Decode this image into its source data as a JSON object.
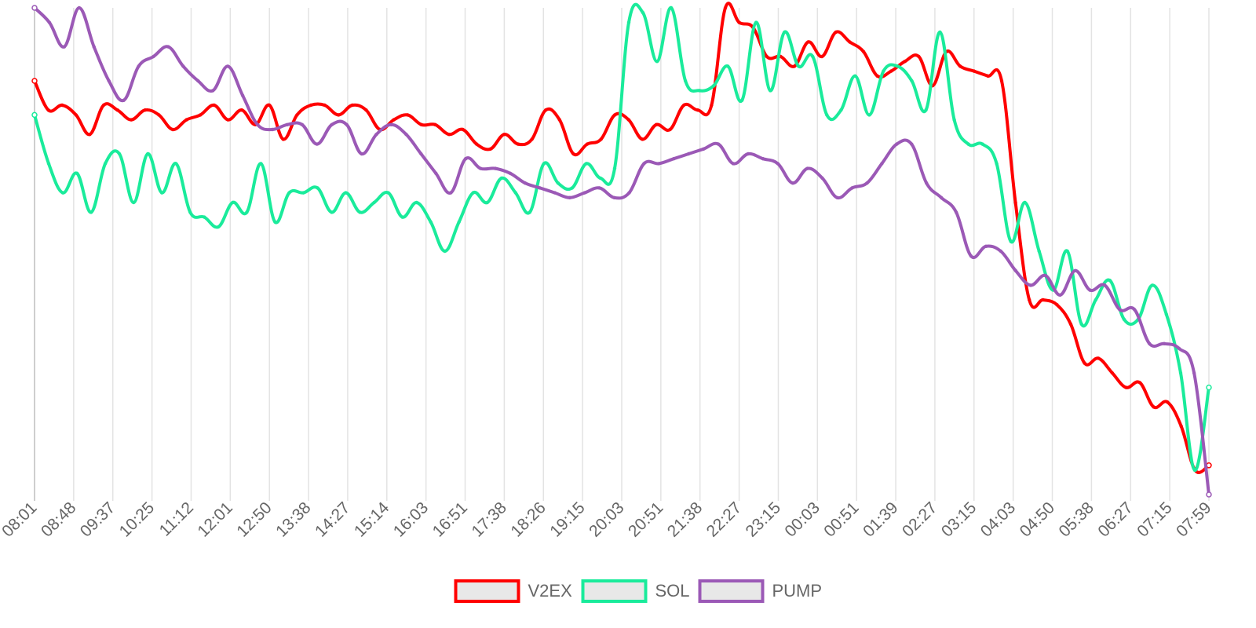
{
  "chart_data": {
    "type": "line",
    "title": "",
    "xlabel": "",
    "ylabel": "",
    "ylim": [
      0,
      100
    ],
    "grid": true,
    "legend_position": "bottom",
    "x_ticks": [
      "08:01",
      "08:48",
      "09:37",
      "10:25",
      "11:12",
      "12:01",
      "12:50",
      "13:38",
      "14:27",
      "15:14",
      "16:03",
      "16:51",
      "17:38",
      "18:26",
      "19:15",
      "20:03",
      "20:51",
      "21:38",
      "22:27",
      "23:15",
      "00:03",
      "00:51",
      "01:39",
      "02:27",
      "03:15",
      "04:03",
      "04:50",
      "05:38",
      "06:27",
      "07:15",
      "07:59"
    ],
    "series": [
      {
        "name": "V2EX",
        "color": "#ff0000",
        "values": [
          85,
          79,
          80,
          78,
          74,
          80,
          79,
          77,
          79,
          78,
          75,
          77,
          78,
          80,
          77,
          79,
          76,
          80,
          73,
          78,
          80,
          80,
          78,
          80,
          79,
          75,
          77,
          78,
          76,
          76,
          74,
          75,
          72,
          71,
          74,
          72,
          73,
          79,
          77,
          70,
          72,
          73,
          78,
          77,
          73,
          76,
          75,
          80,
          79,
          80,
          100,
          97,
          96,
          90,
          90,
          88,
          93,
          90,
          95,
          93,
          91,
          86,
          87,
          89,
          90,
          84,
          91,
          88,
          87,
          86,
          85,
          60,
          40,
          40,
          39,
          35,
          27,
          28,
          25,
          22,
          23,
          18,
          19,
          14,
          5,
          6
        ]
      },
      {
        "name": "SOL",
        "color": "#1aeb9b",
        "values": [
          78,
          68,
          62,
          66,
          58,
          68,
          70,
          60,
          70,
          62,
          68,
          58,
          57,
          55,
          60,
          58,
          68,
          56,
          62,
          62,
          63,
          58,
          62,
          58,
          60,
          62,
          57,
          60,
          56,
          50,
          56,
          62,
          60,
          65,
          62,
          58,
          68,
          64,
          63,
          68,
          65,
          67,
          97,
          99,
          89,
          100,
          85,
          83,
          84,
          88,
          81,
          97,
          83,
          95,
          88,
          90,
          78,
          79,
          86,
          78,
          87,
          88,
          85,
          79,
          95,
          77,
          72,
          72,
          68,
          52,
          60,
          50,
          42,
          50,
          35,
          40,
          44,
          36,
          36,
          43,
          37,
          25,
          5,
          22
        ]
      },
      {
        "name": "PUMP",
        "color": "#9b59b6",
        "values": [
          100,
          97,
          92,
          100,
          92,
          85,
          81,
          88,
          90,
          92,
          88,
          85,
          83,
          88,
          82,
          76,
          75,
          76,
          76,
          72,
          76,
          76,
          70,
          74,
          76,
          74,
          70,
          66,
          62,
          69,
          67,
          67,
          66,
          64,
          63,
          62,
          61,
          62,
          63,
          61,
          62,
          68,
          68,
          69,
          70,
          71,
          72,
          68,
          70,
          69,
          68,
          64,
          67,
          65,
          61,
          63,
          64,
          68,
          72,
          72,
          64,
          61,
          58,
          49,
          51,
          50,
          46,
          43,
          45,
          41,
          46,
          42,
          43,
          38,
          38,
          31,
          31,
          30,
          25,
          0
        ]
      }
    ]
  }
}
